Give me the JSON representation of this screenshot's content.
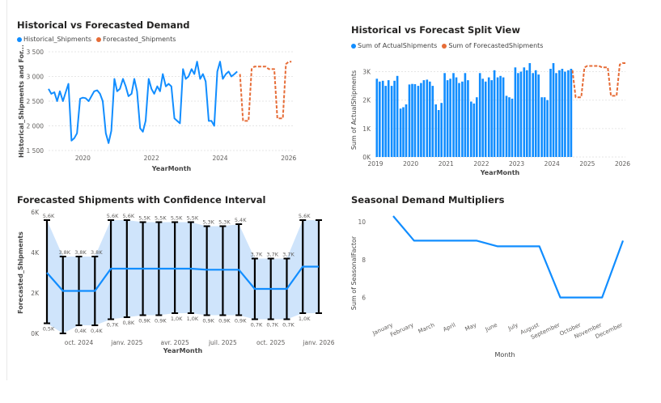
{
  "colors": {
    "actual": "#118DFF",
    "forecast": "#E66C37",
    "band": "#cfe4fb",
    "bar": "#000000",
    "axis_text": "#605E5C"
  },
  "chart_data": [
    {
      "id": "chart1",
      "type": "line",
      "title": "Historical vs Forecasted Demand",
      "xlabel": "YearMonth",
      "ylabel": "Historical_Shipments and For...",
      "legend": "top-left",
      "ylim": [
        1500,
        3500
      ],
      "yticks": [
        "1 500",
        "2 000",
        "2 500",
        "3 000",
        "3 500"
      ],
      "ytick_values": [
        1500,
        2000,
        2500,
        3000,
        3500
      ],
      "xlim": [
        2019.0,
        2026.17
      ],
      "xticks": [
        "2020",
        "2022",
        "2024",
        "2026"
      ],
      "xtick_values": [
        2020,
        2022,
        2024,
        2026
      ],
      "series": [
        {
          "name": "Historical_Shipments",
          "color": "#118DFF",
          "dash": false,
          "x": [
            2019.0,
            2019.08,
            2019.17,
            2019.25,
            2019.33,
            2019.42,
            2019.5,
            2019.58,
            2019.67,
            2019.75,
            2019.83,
            2019.92,
            2020.0,
            2020.08,
            2020.17,
            2020.25,
            2020.33,
            2020.42,
            2020.5,
            2020.58,
            2020.67,
            2020.75,
            2020.83,
            2020.92,
            2021.0,
            2021.08,
            2021.17,
            2021.25,
            2021.33,
            2021.42,
            2021.5,
            2021.58,
            2021.67,
            2021.75,
            2021.83,
            2021.92,
            2022.0,
            2022.08,
            2022.17,
            2022.25,
            2022.33,
            2022.42,
            2022.5,
            2022.58,
            2022.67,
            2022.75,
            2022.83,
            2022.92,
            2023.0,
            2023.08,
            2023.17,
            2023.25,
            2023.33,
            2023.42,
            2023.5,
            2023.58,
            2023.67,
            2023.75,
            2023.83,
            2023.92,
            2024.0,
            2024.08,
            2024.17,
            2024.25,
            2024.33,
            2024.42,
            2024.5
          ],
          "y": [
            2750,
            2650,
            2680,
            2500,
            2700,
            2500,
            2680,
            2850,
            1700,
            1750,
            1850,
            2550,
            2570,
            2560,
            2500,
            2600,
            2700,
            2720,
            2650,
            2500,
            1850,
            1650,
            1900,
            2950,
            2700,
            2750,
            2950,
            2800,
            2600,
            2650,
            2950,
            2700,
            1950,
            1880,
            2100,
            2950,
            2750,
            2650,
            2800,
            2700,
            3050,
            2800,
            2850,
            2800,
            2150,
            2100,
            2050,
            3150,
            2950,
            3000,
            3150,
            3050,
            3300,
            2950,
            3050,
            2900,
            2100,
            2100,
            2000,
            3100,
            3300,
            2950,
            3050,
            3100,
            3000,
            3050,
            3100
          ]
        },
        {
          "name": "Forecasted_Shipments",
          "color": "#E66C37",
          "dash": true,
          "x": [
            2024.58,
            2024.67,
            2024.75,
            2024.83,
            2024.92,
            2025.0,
            2025.08,
            2025.17,
            2025.25,
            2025.33,
            2025.42,
            2025.5,
            2025.58,
            2025.67,
            2025.75,
            2025.83,
            2025.92,
            2026.0,
            2026.08
          ],
          "y": [
            3050,
            2100,
            2100,
            2100,
            3150,
            3200,
            3200,
            3200,
            3200,
            3200,
            3150,
            3150,
            3150,
            2150,
            2150,
            2150,
            3250,
            3300,
            3300
          ]
        }
      ]
    },
    {
      "id": "chart2",
      "type": "bar",
      "title": "Historical vs Forecast Split View",
      "xlabel": "YearMonth",
      "ylabel": "Sum of ActualShipments",
      "legend": "top-left",
      "ylim": [
        0,
        3300
      ],
      "yticks": [
        "0K",
        "1K",
        "2K",
        "3K"
      ],
      "ytick_values": [
        0,
        1000,
        2000,
        3000
      ],
      "xlim": [
        2019.0,
        2026.08
      ],
      "xticks": [
        "2019",
        "2020",
        "2021",
        "2022",
        "2023",
        "2024",
        "2025",
        "2026"
      ],
      "xtick_values": [
        2019,
        2020,
        2021,
        2022,
        2023,
        2024,
        2025,
        2026
      ],
      "series": [
        {
          "name": "Sum of ActualShipments",
          "color": "#118DFF",
          "x": [
            2019.0,
            2019.08,
            2019.17,
            2019.25,
            2019.33,
            2019.42,
            2019.5,
            2019.58,
            2019.67,
            2019.75,
            2019.83,
            2019.92,
            2020.0,
            2020.08,
            2020.17,
            2020.25,
            2020.33,
            2020.42,
            2020.5,
            2020.58,
            2020.67,
            2020.75,
            2020.83,
            2020.92,
            2021.0,
            2021.08,
            2021.17,
            2021.25,
            2021.33,
            2021.42,
            2021.5,
            2021.58,
            2021.67,
            2021.75,
            2021.83,
            2021.92,
            2022.0,
            2022.08,
            2022.17,
            2022.25,
            2022.33,
            2022.42,
            2022.5,
            2022.58,
            2022.67,
            2022.75,
            2022.83,
            2022.92,
            2023.0,
            2023.08,
            2023.17,
            2023.25,
            2023.33,
            2023.42,
            2023.5,
            2023.58,
            2023.67,
            2023.75,
            2023.83,
            2023.92,
            2024.0,
            2024.08,
            2024.17,
            2024.25,
            2024.33,
            2024.42,
            2024.5
          ],
          "values": [
            2750,
            2650,
            2680,
            2500,
            2700,
            2500,
            2680,
            2850,
            1700,
            1750,
            1850,
            2550,
            2570,
            2560,
            2500,
            2600,
            2700,
            2720,
            2650,
            2500,
            1850,
            1650,
            1900,
            2950,
            2700,
            2750,
            2950,
            2800,
            2600,
            2650,
            2950,
            2700,
            1950,
            1880,
            2100,
            2950,
            2750,
            2650,
            2800,
            2700,
            3050,
            2800,
            2850,
            2800,
            2150,
            2100,
            2050,
            3150,
            2950,
            3000,
            3150,
            3050,
            3300,
            2950,
            3050,
            2900,
            2100,
            2100,
            2000,
            3100,
            3300,
            2950,
            3050,
            3100,
            3000,
            3050,
            3100
          ]
        },
        {
          "name": "Sum of ForecastedShipments",
          "color": "#E66C37",
          "type": "line",
          "dash": true,
          "x": [
            2024.58,
            2024.67,
            2024.75,
            2024.83,
            2024.92,
            2025.0,
            2025.08,
            2025.17,
            2025.25,
            2025.33,
            2025.42,
            2025.5,
            2025.58,
            2025.67,
            2025.75,
            2025.83,
            2025.92,
            2026.0,
            2026.08
          ],
          "values": [
            3050,
            2100,
            2100,
            2100,
            3150,
            3200,
            3200,
            3200,
            3200,
            3200,
            3150,
            3150,
            3150,
            2150,
            2150,
            2150,
            3250,
            3300,
            3300
          ]
        }
      ]
    },
    {
      "id": "chart3",
      "type": "line",
      "title": "Forecasted Shipments with Confidence Interval",
      "xlabel": "YearMonth",
      "ylabel": "Forecasted_Shipments",
      "ylim": [
        0,
        6000
      ],
      "yticks": [
        "0K",
        "2K",
        "4K",
        "6K"
      ],
      "ytick_values": [
        0,
        2000,
        4000,
        6000
      ],
      "xlim": [
        0,
        18
      ],
      "xticks": [
        "oct. 2024",
        "janv. 2025",
        "avr. 2025",
        "juil. 2025",
        "oct. 2025",
        "janv. 2026"
      ],
      "xtick_values": [
        2,
        5,
        8,
        11,
        14,
        17
      ],
      "forecast": [
        3000,
        2100,
        2100,
        2100,
        3200,
        3200,
        3200,
        3200,
        3200,
        3200,
        3150,
        3150,
        3150,
        2200,
        2200,
        2200,
        3300,
        3300
      ],
      "upper": [
        5600,
        3800,
        3800,
        3800,
        5600,
        5600,
        5500,
        5500,
        5500,
        5500,
        5300,
        5300,
        5400,
        3700,
        3700,
        3700,
        5600,
        5600
      ],
      "lower": [
        500,
        0,
        400,
        400,
        700,
        800,
        900,
        900,
        1000,
        1000,
        900,
        900,
        900,
        700,
        700,
        700,
        1000,
        1000
      ],
      "upper_labels": [
        "5,6K",
        "3,8K",
        "3,8K",
        "3,8K",
        "5,6K",
        "5,6K",
        "5,5K",
        "5,5K",
        "5,5K",
        "5,5K",
        "5,3K",
        "5,3K",
        "5,4K",
        "3,7K",
        "3,7K",
        "3,7K",
        "5,6K",
        ""
      ],
      "lower_labels": [
        "0,5K",
        "",
        "0,4K",
        "0,4K",
        "0,7K",
        "0,8K",
        "0,9K",
        "0,9K",
        "1,0K",
        "1,0K",
        "0,9K",
        "0,9K",
        "0,9K",
        "0,7K",
        "0,7K",
        "0,7K",
        "1,0K",
        ""
      ]
    },
    {
      "id": "chart4",
      "type": "line",
      "title": "Seasonal Demand Multipliers",
      "xlabel": "Month",
      "ylabel": "Sum of SeasonalFactor",
      "ylim": [
        5,
        10.6
      ],
      "yticks": [
        "6",
        "8",
        "10"
      ],
      "ytick_values": [
        6,
        8,
        10
      ],
      "categories": [
        "January",
        "February",
        "March",
        "April",
        "May",
        "June",
        "July",
        "August",
        "September",
        "October",
        "November",
        "December"
      ],
      "values": [
        10.3,
        9.0,
        9.0,
        9.0,
        9.0,
        8.7,
        8.7,
        8.7,
        6.0,
        6.0,
        6.0,
        9.0
      ]
    }
  ]
}
